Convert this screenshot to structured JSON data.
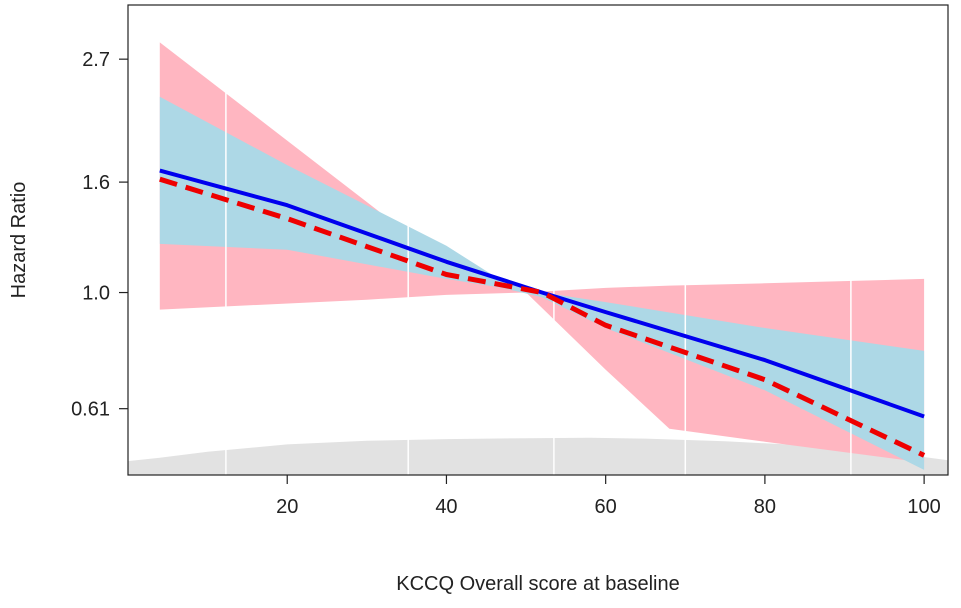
{
  "chart_data": {
    "type": "line",
    "title": "",
    "xlabel": "KCCQ Overall score at baseline",
    "ylabel": "Hazard Ratio",
    "y_scale": "log",
    "xlim": [
      0,
      103
    ],
    "ylim": [
      0.46,
      3.4
    ],
    "x_ticks": [
      20,
      40,
      60,
      80,
      100
    ],
    "x_tick_labels": [
      "20",
      "40",
      "60",
      "80",
      "100"
    ],
    "y_ticks": [
      0.61,
      1.0,
      1.6,
      2.7
    ],
    "y_tick_labels": [
      "0.61",
      "1.0",
      "1.6",
      "2.7"
    ],
    "grid": false,
    "legend": "none",
    "colors": {
      "solid_line": "#0000ee",
      "dashed_line": "#ee0000",
      "solid_band": "#add8e6",
      "dashed_band": "#ffb6c1",
      "density": "#e2e2e2",
      "rug": "#ffffff"
    },
    "series": [
      {
        "style": "solid",
        "x": [
          4,
          20,
          40,
          52,
          60,
          80,
          100
        ],
        "y": [
          1.68,
          1.45,
          1.14,
          1.0,
          0.92,
          0.75,
          0.59
        ]
      },
      {
        "style": "dashed",
        "x": [
          4,
          20,
          40,
          52,
          60,
          80,
          100
        ],
        "y": [
          1.62,
          1.37,
          1.08,
          1.0,
          0.87,
          0.69,
          0.5
        ]
      }
    ],
    "bands": [
      {
        "style": "outer",
        "x": [
          4,
          30,
          40,
          50,
          60,
          68,
          80,
          100
        ],
        "upper": [
          2.9,
          1.47,
          1.13,
          1.0,
          1.02,
          1.03,
          1.04,
          1.06
        ],
        "lower": [
          0.93,
          0.97,
          0.99,
          1.0,
          0.72,
          0.56,
          0.53,
          0.485
        ]
      },
      {
        "style": "inner",
        "x": [
          4,
          20,
          40,
          47,
          52,
          60,
          80,
          100
        ],
        "upper": [
          2.3,
          1.72,
          1.22,
          1.05,
          1.0,
          0.96,
          0.86,
          0.78
        ],
        "lower": [
          1.23,
          1.2,
          1.06,
          1.02,
          0.98,
          0.86,
          0.66,
          0.47
        ]
      }
    ],
    "density": {
      "x": [
        0,
        4,
        10,
        20,
        30,
        40,
        50,
        58,
        65,
        75,
        85,
        95,
        103
      ],
      "y": [
        0.488,
        0.495,
        0.508,
        0.524,
        0.532,
        0.536,
        0.538,
        0.539,
        0.537,
        0.531,
        0.522,
        0.508,
        0.49
      ]
    },
    "rug_x": [
      12.3,
      35.2,
      53.5,
      70,
      90.8
    ]
  }
}
